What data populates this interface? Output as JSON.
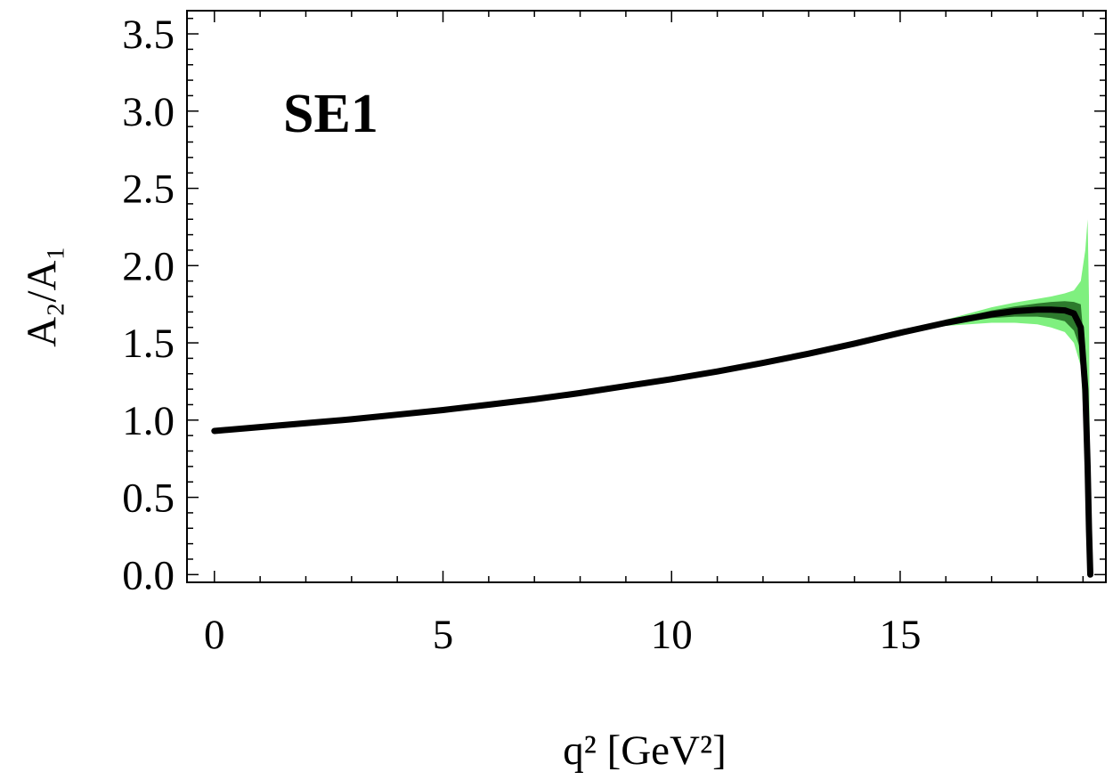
{
  "chart_data": {
    "type": "line",
    "title": "",
    "annotation": "SE1",
    "xlabel": "q² [GeV²]",
    "ylabel": "A₂/A₁",
    "xlim": [
      -0.6,
      19.5
    ],
    "ylim": [
      -0.05,
      3.65
    ],
    "x_ticks": [
      0,
      5,
      10,
      15
    ],
    "y_ticks": [
      0.0,
      0.5,
      1.0,
      1.5,
      2.0,
      2.5,
      3.0,
      3.5
    ],
    "y_tick_labels": [
      "0.0",
      "0.5",
      "1.0",
      "1.5",
      "2.0",
      "2.5",
      "3.0",
      "3.5"
    ],
    "grid": false,
    "legend": "none",
    "colors": {
      "central": "#000000",
      "inner_band": "#2d7a2d",
      "outer_band": "#7ff07f"
    },
    "series": [
      {
        "role": "central",
        "x": [
          0,
          1,
          2,
          3,
          4,
          5,
          6,
          7,
          8,
          9,
          10,
          11,
          12,
          13,
          14,
          15,
          16,
          17,
          17.5,
          18,
          18.3,
          18.6,
          18.8,
          18.95,
          19.05,
          19.1,
          19.13,
          19.16
        ],
        "y": [
          0.93,
          0.955,
          0.98,
          1.005,
          1.035,
          1.065,
          1.1,
          1.135,
          1.175,
          1.22,
          1.265,
          1.315,
          1.37,
          1.43,
          1.495,
          1.565,
          1.63,
          1.685,
          1.705,
          1.715,
          1.715,
          1.71,
          1.69,
          1.6,
          1.2,
          0.7,
          0.3,
          0.0
        ]
      },
      {
        "role": "inner_band",
        "x": [
          15,
          16,
          17,
          17.5,
          18,
          18.3,
          18.6,
          18.8,
          18.95,
          19.05,
          19.1,
          19.13,
          19.16
        ],
        "lower": [
          1.56,
          1.62,
          1.66,
          1.67,
          1.67,
          1.66,
          1.64,
          1.58,
          1.45,
          1.0,
          0.5,
          0.2,
          0.0
        ],
        "upper": [
          1.57,
          1.64,
          1.71,
          1.735,
          1.755,
          1.765,
          1.77,
          1.765,
          1.75,
          1.4,
          0.9,
          0.4,
          0.0
        ]
      },
      {
        "role": "outer_band",
        "x": [
          15,
          16,
          17,
          17.5,
          18,
          18.3,
          18.6,
          18.8,
          18.95,
          19.05,
          19.1,
          19.13,
          19.16
        ],
        "lower": [
          1.56,
          1.61,
          1.63,
          1.63,
          1.62,
          1.6,
          1.57,
          1.5,
          1.35,
          0.8,
          0.3,
          0.05,
          0.0
        ],
        "upper": [
          1.57,
          1.65,
          1.73,
          1.76,
          1.785,
          1.8,
          1.82,
          1.84,
          1.9,
          2.1,
          2.3,
          1.8,
          0.0
        ]
      }
    ]
  }
}
